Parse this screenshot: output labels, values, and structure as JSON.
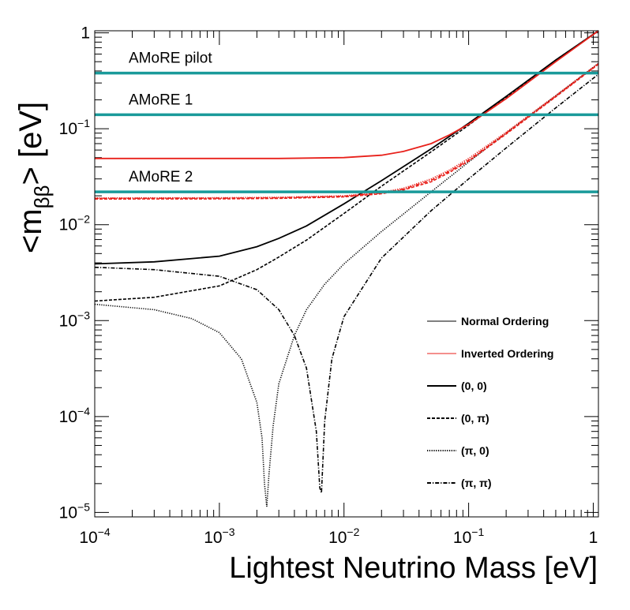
{
  "chart_data": {
    "type": "line",
    "xlabel": "Lightest Neutrino Mass [eV]",
    "ylabel_main": "<m",
    "ylabel_sub": "ββ",
    "ylabel_end": "> [eV]",
    "xscale": "log",
    "yscale": "log",
    "xlim": [
      0.0001,
      1.1
    ],
    "ylim": [
      9e-06,
      1.05
    ],
    "x_ticks": [
      {
        "value": 0.0001,
        "base": "10",
        "exp": "−4"
      },
      {
        "value": 0.001,
        "base": "10",
        "exp": "−3"
      },
      {
        "value": 0.01,
        "base": "10",
        "exp": "−2"
      },
      {
        "value": 0.1,
        "base": "10",
        "exp": "−1"
      },
      {
        "value": 1,
        "base": "1",
        "exp": ""
      }
    ],
    "y_ticks": [
      {
        "value": 1e-05,
        "base": "10",
        "exp": "−5"
      },
      {
        "value": 0.0001,
        "base": "10",
        "exp": "−4"
      },
      {
        "value": 0.001,
        "base": "10",
        "exp": "−3"
      },
      {
        "value": 0.01,
        "base": "10",
        "exp": "−2"
      },
      {
        "value": 0.1,
        "base": "10",
        "exp": "−1"
      },
      {
        "value": 1,
        "base": "1",
        "exp": ""
      }
    ],
    "sensitivity_lines": [
      {
        "name": "AMoRE pilot",
        "value": 0.38,
        "color": "#1a9a9a"
      },
      {
        "name": "AMoRE 1",
        "value": 0.14,
        "color": "#1a9a9a"
      },
      {
        "name": "AMoRE 2",
        "value": 0.022,
        "color": "#1a9a9a"
      }
    ],
    "series": [
      {
        "name": "NO (0, 0)",
        "ordering": "normal",
        "phase": "(0, 0)",
        "color": "#000000",
        "style": "solid",
        "x": [
          0.0001,
          0.0003,
          0.001,
          0.002,
          0.003,
          0.005,
          0.01,
          0.02,
          0.05,
          0.1,
          0.2,
          0.5,
          1.1
        ],
        "y": [
          0.0039,
          0.0041,
          0.0047,
          0.0059,
          0.0072,
          0.0097,
          0.0165,
          0.0288,
          0.0617,
          0.114,
          0.217,
          0.52,
          1.1
        ]
      },
      {
        "name": "NO (0, π)",
        "ordering": "normal",
        "phase": "(0, π)",
        "color": "#000000",
        "style": "dashed",
        "x": [
          0.0001,
          0.0003,
          0.001,
          0.002,
          0.003,
          0.005,
          0.01,
          0.02,
          0.05,
          0.1,
          0.2,
          0.5,
          1.1
        ],
        "y": [
          0.0016,
          0.00175,
          0.0023,
          0.0034,
          0.0046,
          0.0069,
          0.0131,
          0.0252,
          0.0575,
          0.109,
          0.212,
          0.52,
          1.1
        ]
      },
      {
        "name": "NO (π, 0)",
        "ordering": "normal",
        "phase": "(π, 0)",
        "color": "#000000",
        "style": "dotted",
        "x": [
          0.0001,
          0.0003,
          0.0006,
          0.001,
          0.0015,
          0.002,
          0.0022,
          0.0023,
          0.0024,
          0.0025,
          0.0027,
          0.003,
          0.004,
          0.005,
          0.007,
          0.01,
          0.02,
          0.05,
          0.1,
          0.2,
          0.5,
          1.1
        ],
        "y": [
          0.00148,
          0.0013,
          0.00105,
          0.00075,
          0.0004,
          0.00014,
          6e-05,
          2e-05,
          1.15e-05,
          2.5e-05,
          8e-05,
          0.00022,
          0.0007,
          0.0013,
          0.0024,
          0.0039,
          0.0085,
          0.022,
          0.045,
          0.09,
          0.22,
          0.48
        ]
      },
      {
        "name": "NO (π, π)",
        "ordering": "normal",
        "phase": "(π, π)",
        "color": "#000000",
        "style": "dashdot",
        "x": [
          0.0001,
          0.0003,
          0.001,
          0.002,
          0.003,
          0.004,
          0.005,
          0.006,
          0.0064,
          0.0066,
          0.007,
          0.008,
          0.01,
          0.02,
          0.05,
          0.1,
          0.2,
          0.5,
          1.1
        ],
        "y": [
          0.0036,
          0.0034,
          0.0029,
          0.0021,
          0.0013,
          0.0007,
          0.00032,
          7e-05,
          1.8e-05,
          1.6e-05,
          9e-05,
          0.0004,
          0.0011,
          0.0045,
          0.014,
          0.03,
          0.063,
          0.165,
          0.37
        ]
      },
      {
        "name": "IO (0, 0)",
        "ordering": "inverted",
        "phase": "(0, 0)",
        "color": "#e8211b",
        "style": "solid",
        "x": [
          0.0001,
          0.001,
          0.003,
          0.01,
          0.02,
          0.03,
          0.05,
          0.07,
          0.1,
          0.2,
          0.5,
          1.1
        ],
        "y": [
          0.049,
          0.049,
          0.049,
          0.05,
          0.053,
          0.058,
          0.07,
          0.086,
          0.111,
          0.206,
          0.5,
          1.1
        ]
      },
      {
        "name": "IO (0, π)",
        "ordering": "inverted",
        "phase": "(0, π)",
        "color": "#e8211b",
        "style": "dashed",
        "x": [
          0.0001,
          0.001,
          0.003,
          0.01,
          0.02,
          0.03,
          0.05,
          0.07,
          0.1,
          0.2,
          0.5,
          1.1
        ],
        "y": [
          0.0185,
          0.0186,
          0.0188,
          0.0195,
          0.021,
          0.023,
          0.028,
          0.035,
          0.046,
          0.088,
          0.215,
          0.47
        ]
      },
      {
        "name": "IO (π, 0)",
        "ordering": "inverted",
        "phase": "(π, 0)",
        "color": "#e8211b",
        "style": "dotted",
        "x": [
          0.0001,
          0.001,
          0.003,
          0.01,
          0.02,
          0.03,
          0.05,
          0.07,
          0.1,
          0.2,
          0.5,
          1.1
        ],
        "y": [
          0.019,
          0.0191,
          0.0193,
          0.02,
          0.0218,
          0.024,
          0.03,
          0.037,
          0.049,
          0.092,
          0.222,
          0.48
        ]
      },
      {
        "name": "IO (π, π)",
        "ordering": "inverted",
        "phase": "(π, π)",
        "color": "#e8211b",
        "style": "dashdot",
        "x": [
          0.0001,
          0.001,
          0.003,
          0.01,
          0.02,
          0.03,
          0.05,
          0.07,
          0.1,
          0.2,
          0.5,
          1.1
        ],
        "y": [
          0.0188,
          0.0189,
          0.0191,
          0.0198,
          0.0214,
          0.0235,
          0.029,
          0.036,
          0.047,
          0.09,
          0.218,
          0.475
        ]
      }
    ],
    "legend": {
      "placement": "bottom-right",
      "entries": [
        {
          "label": "Normal Ordering",
          "color": "#000000",
          "style": "thin"
        },
        {
          "label": "Inverted Ordering",
          "color": "#e8211b",
          "style": "thin"
        },
        {
          "label": "(0, 0)",
          "color": "#000000",
          "style": "solid"
        },
        {
          "label": "(0, π)",
          "color": "#000000",
          "style": "dashed"
        },
        {
          "label": "(π, 0)",
          "color": "#000000",
          "style": "dotted"
        },
        {
          "label": "(π, π)",
          "color": "#000000",
          "style": "dashdot"
        }
      ]
    }
  }
}
